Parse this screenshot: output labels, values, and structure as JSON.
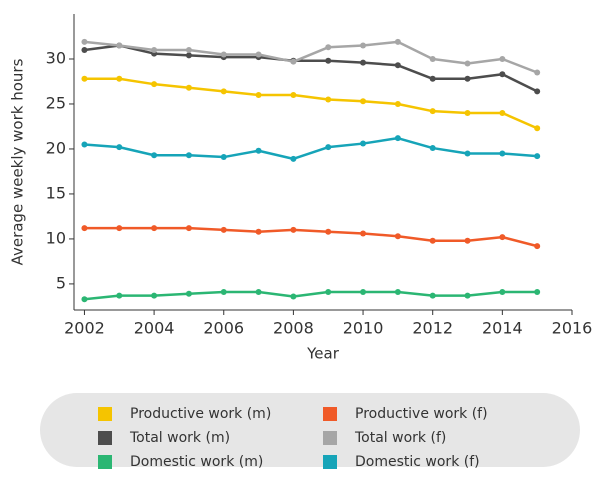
{
  "chart_data": {
    "type": "line",
    "x_label": "Year",
    "y_label": "Average weekly work hours",
    "x": [
      2002,
      2003,
      2004,
      2005,
      2006,
      2007,
      2008,
      2009,
      2010,
      2011,
      2012,
      2013,
      2014,
      2015
    ],
    "series": [
      {
        "name": "Productive work (m)",
        "color": "#f5c400",
        "values": [
          27.8,
          27.8,
          27.2,
          26.8,
          26.4,
          26.0,
          26.0,
          25.5,
          25.3,
          25.0,
          24.2,
          24.0,
          24.0,
          22.3
        ]
      },
      {
        "name": "Productive work (f)",
        "color": "#f05a28",
        "values": [
          11.2,
          11.2,
          11.2,
          11.2,
          11.0,
          10.8,
          11.0,
          10.8,
          10.6,
          10.3,
          9.8,
          9.8,
          10.2,
          9.2
        ]
      },
      {
        "name": "Total work (m)",
        "color": "#4d4d4d",
        "values": [
          31.0,
          31.5,
          30.6,
          30.4,
          30.2,
          30.2,
          29.8,
          29.8,
          29.6,
          29.3,
          27.8,
          27.8,
          28.3,
          26.4
        ]
      },
      {
        "name": "Total work (f)",
        "color": "#a6a6a6",
        "values": [
          31.9,
          31.5,
          31.0,
          31.0,
          30.5,
          30.5,
          29.7,
          31.3,
          31.5,
          31.9,
          30.0,
          29.5,
          30.0,
          28.5
        ]
      },
      {
        "name": "Domestic work (m)",
        "color": "#2bb673",
        "values": [
          3.3,
          3.7,
          3.7,
          3.9,
          4.1,
          4.1,
          3.6,
          4.1,
          4.1,
          4.1,
          3.7,
          3.7,
          4.1,
          4.1
        ]
      },
      {
        "name": "Domestic work (f)",
        "color": "#16a4b8",
        "values": [
          20.5,
          20.2,
          19.3,
          19.3,
          19.1,
          19.8,
          18.9,
          20.2,
          20.6,
          21.2,
          20.1,
          19.5,
          19.5,
          19.2
        ]
      }
    ],
    "xlim": [
      2001.7,
      2016
    ],
    "xticks": [
      2002,
      2004,
      2006,
      2008,
      2010,
      2012,
      2014,
      2016
    ],
    "ylim": [
      2.1,
      35
    ],
    "yticks": [
      5,
      10,
      15,
      20,
      25,
      30
    ],
    "grid": false,
    "legend": "bottom"
  }
}
